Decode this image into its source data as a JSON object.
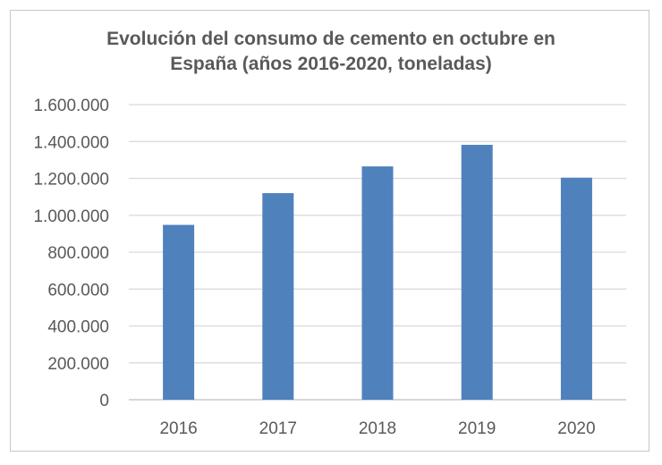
{
  "chart_data": {
    "type": "bar",
    "title_lines": [
      "Evolución del consumo de cemento en octubre en",
      "España  (años 2016-2020, toneladas)"
    ],
    "categories": [
      "2016",
      "2017",
      "2018",
      "2019",
      "2020"
    ],
    "values": [
      948000,
      1120000,
      1265000,
      1382000,
      1204000
    ],
    "ylim": [
      0,
      1600000
    ],
    "yticks": [
      0,
      200000,
      400000,
      600000,
      800000,
      1000000,
      1200000,
      1400000,
      1600000
    ],
    "ytick_labels": [
      "0",
      "200.000",
      "400.000",
      "600.000",
      "800.000",
      "1.000.000",
      "1.200.000",
      "1.400.000",
      "1.600.000"
    ],
    "grid": true,
    "legend": "none",
    "bar_color": "#4f81bd",
    "grid_color": "#d9d9d9",
    "text_color": "#595959"
  }
}
